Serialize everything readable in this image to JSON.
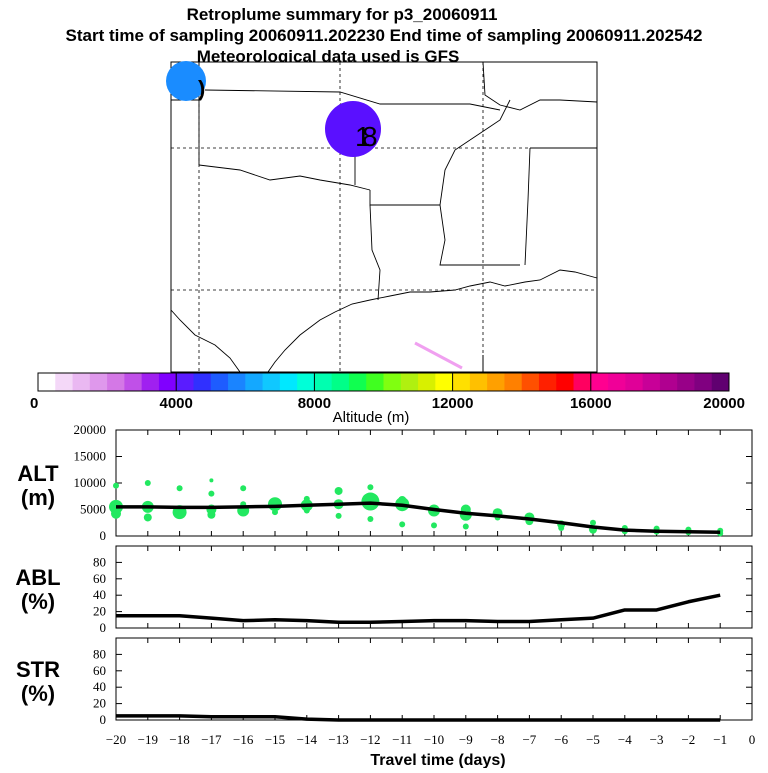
{
  "titles": {
    "line1": "Retroplume summary for p3_20060911",
    "line2": "Start time of sampling 20060911.202230     End time of sampling 20060911.202542",
    "line3": "Meteorological data used is GFS"
  },
  "colorbar": {
    "ticks": [
      "0",
      "4000",
      "8000",
      "12000",
      "16000",
      "20000"
    ],
    "label": "Altitude (m)",
    "colors": [
      "#ffffff",
      "#f4d8f8",
      "#eab8f2",
      "#df98ec",
      "#d478e6",
      "#c050e8",
      "#a020f0",
      "#8000ff",
      "#5a1cff",
      "#3030ff",
      "#1e5cff",
      "#1a84ff",
      "#14a8ff",
      "#10c8ff",
      "#00e8ff",
      "#00ffd8",
      "#00ffb0",
      "#00ff88",
      "#10ff50",
      "#40ff20",
      "#80ff10",
      "#b0f010",
      "#d8f000",
      "#ffff00",
      "#ffe000",
      "#ffc000",
      "#ffa000",
      "#ff8000",
      "#ff5000",
      "#ff2000",
      "#ff0000",
      "#ff0060",
      "#ff0090",
      "#f00098",
      "#e00098",
      "#c80098",
      "#b00090",
      "#980088",
      "#800080",
      "#600070"
    ]
  },
  "map": {
    "icons": [
      "plume-icon",
      "plume-icon"
    ],
    "plume_colors": [
      "#1a8cff",
      "#5a10ff"
    ]
  },
  "chart_data": [
    {
      "type": "line",
      "panel": "ALT",
      "ylabel_line1": "ALT",
      "ylabel_line2": "(m)",
      "ylim": [
        0,
        20000
      ],
      "yticks": [
        "0",
        "5000",
        "10000",
        "15000",
        "20000"
      ],
      "x": [
        -20,
        -19,
        -18,
        -17,
        -16,
        -15,
        -14,
        -13,
        -12,
        -11,
        -10,
        -9,
        -8,
        -7,
        -6,
        -5,
        -4,
        -3,
        -2,
        -1
      ],
      "values": [
        5500,
        5500,
        5400,
        5400,
        5500,
        5600,
        5800,
        6000,
        6200,
        5800,
        5000,
        4300,
        3800,
        3200,
        2500,
        1700,
        1100,
        900,
        800,
        700
      ],
      "scatter": [
        {
          "x": -20,
          "y": 9500,
          "r": 3
        },
        {
          "x": -20,
          "y": 5500,
          "r": 7
        },
        {
          "x": -20,
          "y": 4200,
          "r": 5
        },
        {
          "x": -19,
          "y": 10000,
          "r": 3
        },
        {
          "x": -19,
          "y": 5500,
          "r": 6
        },
        {
          "x": -19,
          "y": 3500,
          "r": 4
        },
        {
          "x": -18,
          "y": 9000,
          "r": 3
        },
        {
          "x": -18,
          "y": 4500,
          "r": 7
        },
        {
          "x": -17,
          "y": 10500,
          "r": 2
        },
        {
          "x": -17,
          "y": 8000,
          "r": 3
        },
        {
          "x": -17,
          "y": 5000,
          "r": 5
        },
        {
          "x": -17,
          "y": 4000,
          "r": 4
        },
        {
          "x": -16,
          "y": 9000,
          "r": 3
        },
        {
          "x": -16,
          "y": 6000,
          "r": 3
        },
        {
          "x": -16,
          "y": 4800,
          "r": 6
        },
        {
          "x": -15,
          "y": 6000,
          "r": 7
        },
        {
          "x": -15,
          "y": 4500,
          "r": 3
        },
        {
          "x": -14,
          "y": 7000,
          "r": 3
        },
        {
          "x": -14,
          "y": 5800,
          "r": 6
        },
        {
          "x": -14,
          "y": 4800,
          "r": 3
        },
        {
          "x": -13,
          "y": 8500,
          "r": 4
        },
        {
          "x": -13,
          "y": 6000,
          "r": 5
        },
        {
          "x": -13,
          "y": 3800,
          "r": 3
        },
        {
          "x": -12,
          "y": 9200,
          "r": 3
        },
        {
          "x": -12,
          "y": 6500,
          "r": 9
        },
        {
          "x": -12,
          "y": 3200,
          "r": 3
        },
        {
          "x": -11,
          "y": 6800,
          "r": 4
        },
        {
          "x": -11,
          "y": 6000,
          "r": 7
        },
        {
          "x": -11,
          "y": 2200,
          "r": 3
        },
        {
          "x": -10,
          "y": 4800,
          "r": 6
        },
        {
          "x": -10,
          "y": 2000,
          "r": 3
        },
        {
          "x": -9,
          "y": 5000,
          "r": 5
        },
        {
          "x": -9,
          "y": 4000,
          "r": 6
        },
        {
          "x": -9,
          "y": 1800,
          "r": 3
        },
        {
          "x": -8,
          "y": 4300,
          "r": 5
        },
        {
          "x": -8,
          "y": 3500,
          "r": 3
        },
        {
          "x": -7,
          "y": 3500,
          "r": 5
        },
        {
          "x": -7,
          "y": 2800,
          "r": 4
        },
        {
          "x": -6,
          "y": 2200,
          "r": 4
        },
        {
          "x": -6,
          "y": 1500,
          "r": 3
        },
        {
          "x": -5,
          "y": 2500,
          "r": 3
        },
        {
          "x": -5,
          "y": 1200,
          "r": 4
        },
        {
          "x": -4,
          "y": 1500,
          "r": 3
        },
        {
          "x": -4,
          "y": 900,
          "r": 3
        },
        {
          "x": -3,
          "y": 1400,
          "r": 3
        },
        {
          "x": -3,
          "y": 800,
          "r": 3
        },
        {
          "x": -2,
          "y": 1200,
          "r": 3
        },
        {
          "x": -2,
          "y": 700,
          "r": 3
        },
        {
          "x": -1,
          "y": 1000,
          "r": 3
        },
        {
          "x": -1,
          "y": 500,
          "r": 3
        }
      ]
    },
    {
      "type": "line",
      "panel": "ABL",
      "ylabel_line1": "ABL",
      "ylabel_line2": "(%)",
      "ylim": [
        0,
        100
      ],
      "yticks": [
        "0",
        "20",
        "40",
        "60",
        "80"
      ],
      "x": [
        -20,
        -19,
        -18,
        -17,
        -16,
        -15,
        -14,
        -13,
        -12,
        -11,
        -10,
        -9,
        -8,
        -7,
        -6,
        -5,
        -4,
        -3,
        -2,
        -1
      ],
      "values": [
        15,
        15,
        15,
        12,
        9,
        10,
        9,
        7,
        7,
        8,
        9,
        9,
        8,
        8,
        10,
        12,
        22,
        22,
        32,
        40
      ]
    },
    {
      "type": "line",
      "panel": "STR",
      "ylabel_line1": "STR",
      "ylabel_line2": "(%)",
      "ylim": [
        0,
        100
      ],
      "yticks": [
        "0",
        "20",
        "40",
        "60",
        "80"
      ],
      "x": [
        -20,
        -19,
        -18,
        -17,
        -16,
        -15,
        -14,
        -13,
        -12,
        -11,
        -10,
        -9,
        -8,
        -7,
        -6,
        -5,
        -4,
        -3,
        -2,
        -1
      ],
      "values": [
        5,
        5,
        5,
        4,
        4,
        4,
        1,
        0,
        0,
        0,
        0,
        0,
        0,
        0,
        0,
        0,
        0,
        0,
        0,
        0
      ],
      "xlabel": "Travel time (days)",
      "xticks": [
        "−20",
        "−19",
        "−18",
        "−17",
        "−16",
        "−15",
        "−14",
        "−13",
        "−12",
        "−11",
        "−10",
        "−9",
        "−8",
        "−7",
        "−6",
        "−5",
        "−4",
        "−3",
        "−2",
        "−1",
        "0"
      ]
    }
  ]
}
